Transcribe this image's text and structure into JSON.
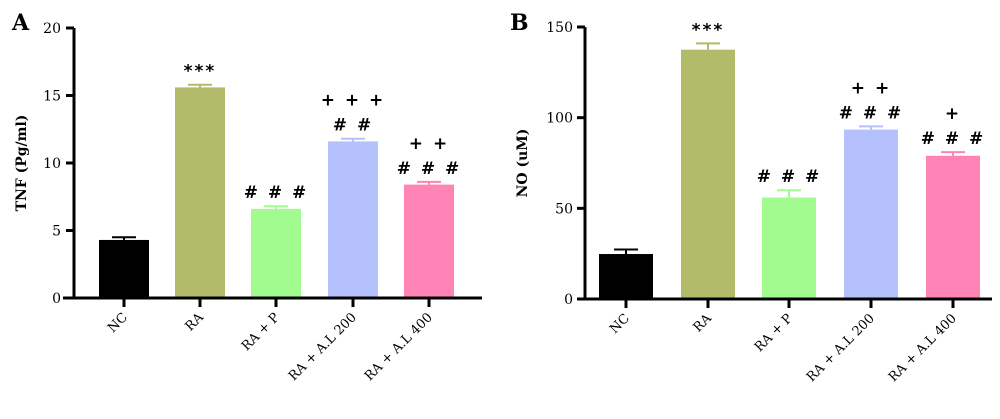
{
  "chart_data": [
    {
      "type": "bar",
      "panel": "A",
      "title": "",
      "xlabel": "",
      "ylabel": "TNF (Pg/ml)",
      "ylim": [
        0,
        20
      ],
      "yticks": [
        0,
        5,
        10,
        15,
        20
      ],
      "grid": false,
      "categories": [
        "NC",
        "RA",
        "RA + P",
        "RA + A.L 200",
        "RA + A.L 400"
      ],
      "values": [
        4.3,
        15.6,
        6.6,
        11.6,
        8.4
      ],
      "error": [
        0.2,
        0.2,
        0.2,
        0.2,
        0.2
      ],
      "colors": [
        "#000000",
        "#B1BB6A",
        "#A1FB8F",
        "#B4C1FC",
        "#FF83B5"
      ],
      "annotations": [
        [],
        [
          "***"
        ],
        [
          "# # #"
        ],
        [
          "+ + +",
          "# #"
        ],
        [
          "+ +",
          "# # #"
        ]
      ]
    },
    {
      "type": "bar",
      "panel": "B",
      "title": "",
      "xlabel": "",
      "ylabel": "NO (uM)",
      "ylim": [
        0,
        150
      ],
      "yticks": [
        0,
        50,
        100,
        150
      ],
      "grid": false,
      "categories": [
        "NC",
        "RA",
        "RA + P",
        "RA + A.L 200",
        "RA + A.L 400"
      ],
      "values": [
        24.8,
        137.5,
        56,
        93.4,
        79
      ],
      "error": [
        2.5,
        3.5,
        4,
        1.8,
        2
      ],
      "colors": [
        "#000000",
        "#B1BB6A",
        "#A1FB8F",
        "#B4C1FC",
        "#FF83B5"
      ],
      "annotations": [
        [],
        [
          "***"
        ],
        [
          "# # #"
        ],
        [
          "+ +",
          "# # #"
        ],
        [
          "+",
          "# # #"
        ]
      ]
    }
  ]
}
